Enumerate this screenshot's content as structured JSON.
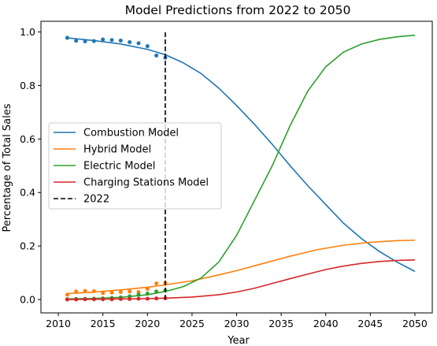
{
  "chart_data": {
    "type": "line",
    "title": "Model Predictions from 2022 to 2050",
    "xlabel": "Year",
    "ylabel": "Percentage of Total Sales",
    "xlim": [
      2008.05,
      2051.95
    ],
    "ylim": [
      -0.05,
      1.04
    ],
    "xticks": [
      2010,
      2015,
      2020,
      2025,
      2030,
      2035,
      2040,
      2045,
      2050
    ],
    "yticks": [
      0.0,
      0.2,
      0.4,
      0.6,
      0.8,
      1.0
    ],
    "ytick_labels": [
      "0.0",
      "0.2",
      "0.4",
      "0.6",
      "0.8",
      "1.0"
    ],
    "grid": false,
    "legend_position": "center-left",
    "series": [
      {
        "name": "Combustion Model",
        "color": "#1f77b4",
        "curve_x": [
          2011,
          2014,
          2017,
          2020,
          2022,
          2024,
          2026,
          2028,
          2030,
          2032,
          2034,
          2035,
          2036,
          2038,
          2040,
          2042,
          2044,
          2046,
          2048,
          2050
        ],
        "curve_y": [
          0.978,
          0.968,
          0.955,
          0.935,
          0.915,
          0.885,
          0.845,
          0.79,
          0.725,
          0.655,
          0.58,
          0.54,
          0.5,
          0.425,
          0.355,
          0.285,
          0.228,
          0.18,
          0.14,
          0.105
        ],
        "points_x": [
          2011,
          2012,
          2013,
          2014,
          2015,
          2016,
          2017,
          2018,
          2019,
          2020,
          2021,
          2022
        ],
        "points_y": [
          0.978,
          0.967,
          0.965,
          0.966,
          0.972,
          0.97,
          0.968,
          0.962,
          0.958,
          0.947,
          0.912,
          0.904
        ]
      },
      {
        "name": "Hybrid Model",
        "color": "#ff7f0e",
        "curve_x": [
          2011,
          2014,
          2017,
          2020,
          2022,
          2025,
          2028,
          2030,
          2033,
          2036,
          2039,
          2042,
          2045,
          2048,
          2050
        ],
        "curve_y": [
          0.022,
          0.028,
          0.036,
          0.046,
          0.055,
          0.07,
          0.092,
          0.108,
          0.135,
          0.162,
          0.186,
          0.203,
          0.214,
          0.22,
          0.222
        ],
        "points_x": [
          2011,
          2012,
          2013,
          2014,
          2015,
          2016,
          2017,
          2018,
          2019,
          2020,
          2021,
          2022
        ],
        "points_y": [
          0.018,
          0.03,
          0.032,
          0.031,
          0.024,
          0.026,
          0.028,
          0.03,
          0.028,
          0.04,
          0.06,
          0.062
        ]
      },
      {
        "name": "Electric Model",
        "color": "#2ca02c",
        "curve_x": [
          2011,
          2014,
          2017,
          2020,
          2022,
          2024,
          2026,
          2028,
          2030,
          2032,
          2034,
          2035,
          2036,
          2038,
          2040,
          2042,
          2044,
          2046,
          2048,
          2050
        ],
        "curve_y": [
          0.002,
          0.004,
          0.008,
          0.018,
          0.03,
          0.048,
          0.08,
          0.14,
          0.24,
          0.37,
          0.5,
          0.575,
          0.65,
          0.78,
          0.87,
          0.925,
          0.955,
          0.972,
          0.982,
          0.988
        ],
        "points_x": [
          2011,
          2012,
          2013,
          2014,
          2015,
          2016,
          2017,
          2018,
          2019,
          2020,
          2021,
          2022
        ],
        "points_y": [
          0.001,
          0.002,
          0.002,
          0.003,
          0.004,
          0.006,
          0.008,
          0.012,
          0.018,
          0.022,
          0.03,
          0.034
        ]
      },
      {
        "name": "Charging Stations Model",
        "color": "#d62728",
        "curve_x": [
          2011,
          2014,
          2017,
          2020,
          2022,
          2025,
          2028,
          2030,
          2032,
          2034,
          2036,
          2038,
          2040,
          2042,
          2044,
          2046,
          2048,
          2050
        ],
        "curve_y": [
          0.0,
          0.001,
          0.002,
          0.003,
          0.005,
          0.009,
          0.018,
          0.028,
          0.042,
          0.06,
          0.078,
          0.095,
          0.112,
          0.125,
          0.135,
          0.142,
          0.146,
          0.148
        ],
        "points_x": [
          2011,
          2012,
          2013,
          2014,
          2015,
          2016,
          2017,
          2018,
          2019,
          2020,
          2021,
          2022
        ],
        "points_y": [
          0.0,
          0.0,
          0.001,
          0.001,
          0.001,
          0.001,
          0.002,
          0.002,
          0.003,
          0.003,
          0.004,
          0.005
        ]
      }
    ],
    "vline": {
      "name": "2022",
      "x": 2022,
      "y_range": [
        0.0,
        1.0
      ],
      "style": "dashed",
      "color": "#000000"
    }
  }
}
